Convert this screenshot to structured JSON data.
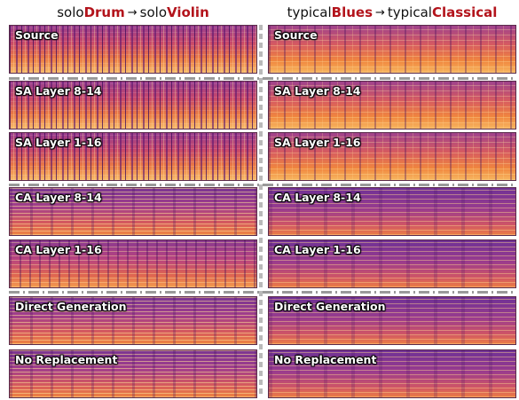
{
  "headers": {
    "left": {
      "pre": "solo ",
      "a": "Drum",
      "mid": " solo ",
      "b": "Violin"
    },
    "right": {
      "pre": "typical ",
      "a": "Blues",
      "mid": " typical ",
      "b": "Classical"
    },
    "arrow": "→"
  },
  "rows": [
    {
      "label": "Source"
    },
    {
      "label": "SA Layer 8-14"
    },
    {
      "label": "SA Layer 1-16"
    },
    {
      "label": "CA Layer 8-14"
    },
    {
      "label": "CA Layer 1-16"
    },
    {
      "label": "Direct Generation"
    },
    {
      "label": "No Replacement"
    }
  ],
  "colors": {
    "highlight": "#b3141c",
    "label_text": "#ffffff",
    "divider": "#9a9a9a"
  }
}
